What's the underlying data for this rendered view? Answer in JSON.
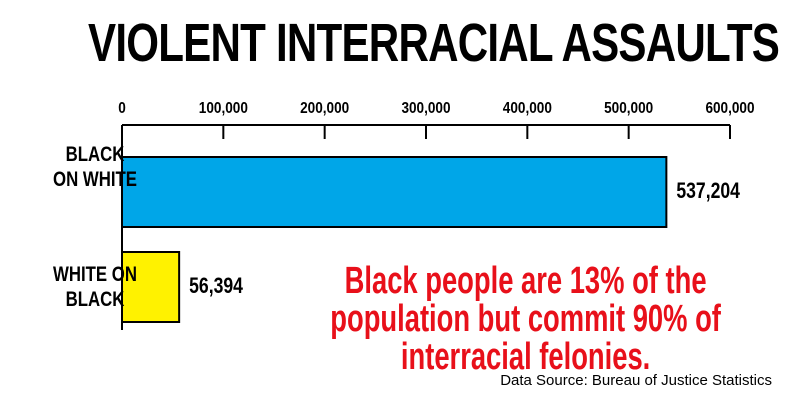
{
  "chart_data": {
    "type": "bar",
    "orientation": "horizontal",
    "title": "VIOLENT INTERRACIAL ASSAULTS",
    "categories": [
      "BLACK ON WHITE",
      "WHITE ON BLACK"
    ],
    "series": [
      {
        "name": "Assaults",
        "values": [
          537204,
          56394
        ],
        "value_labels": [
          "537,204",
          "56,394"
        ],
        "colors": [
          "#00a6e8",
          "#fff200"
        ]
      }
    ],
    "xlim": [
      0,
      600000
    ],
    "xticks": [
      0,
      {
        "value": 100000,
        "label": "100,000"
      },
      {
        "value": 200000,
        "label": "200,000"
      },
      {
        "value": 300000,
        "label": "300,000"
      },
      {
        "value": 400000,
        "label": "400,000"
      },
      {
        "value": 500000,
        "label": "500,000"
      },
      {
        "value": 600000,
        "label": "600,000"
      }
    ],
    "annotation": "Black people are 13% of the population but commit 90% of interracial felonies.",
    "source": "Data Source: Bureau of Justice Statistics"
  }
}
